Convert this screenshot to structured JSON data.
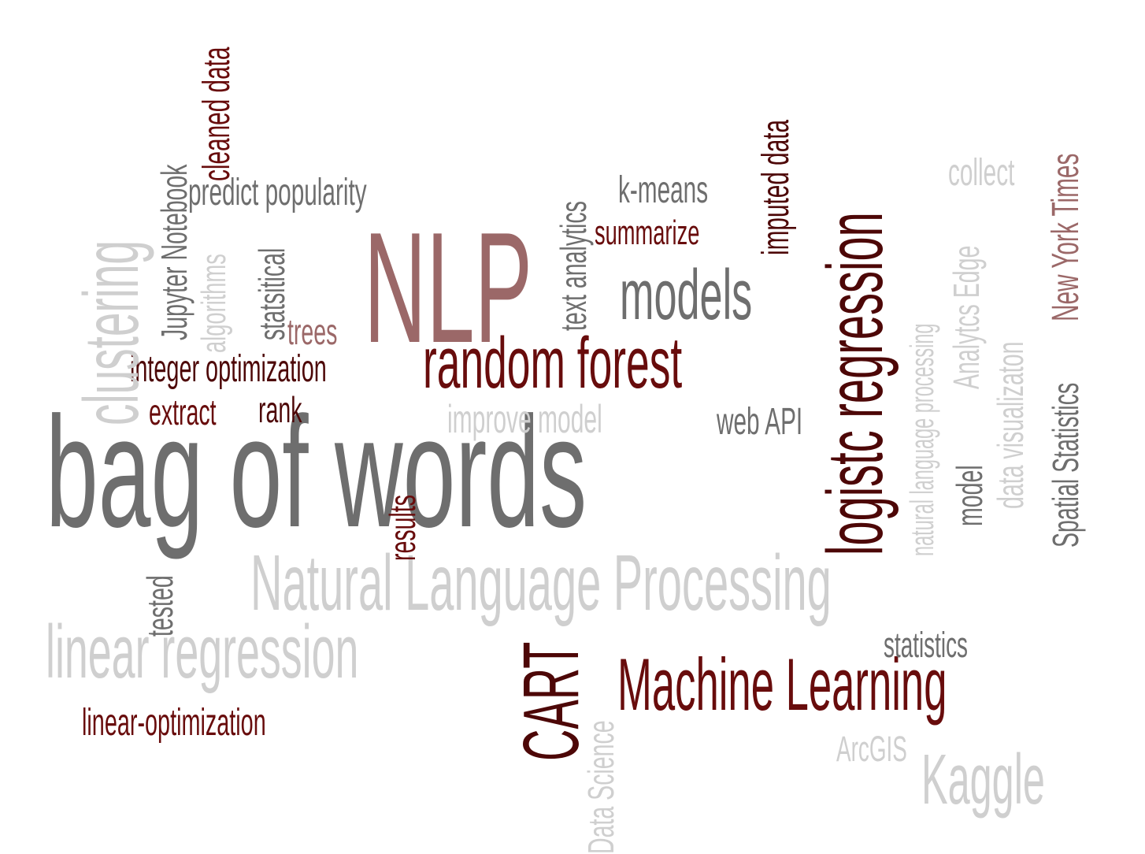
{
  "word_cloud": {
    "words": {
      "bag_of_words": "bag of words",
      "nlp": "NLP",
      "random_forest": "random forest",
      "models": "models",
      "natural_language_processing": "Natural Language Processing",
      "linear_regression": "linear regression",
      "machine_learning": "Machine Learning",
      "kaggle": "Kaggle",
      "statistics": "statistics",
      "arcgis": "ArcGIS",
      "linear_optimization": "linear-optimization",
      "integer_optimization": "integer optimization",
      "extract": "extract",
      "rank": "rank",
      "trees": "trees",
      "predict_popularity": "predict popularity",
      "k_means": "k-means",
      "summarize": "summarize",
      "improve_model": "improve model",
      "web_api": "web API",
      "collect": "collect",
      "clustering": "clustering",
      "jupyter_notebook": "Jupyter Notebook",
      "algorithms": "algorithms",
      "cleaned_data": "cleaned data",
      "statsitical": "statsitical",
      "text_analytics": "text analytics",
      "imputed_data": "imputed data",
      "logistc_regression": "logistc regression",
      "natural_language_processing_small": "natural language processing",
      "analytcs_edge": "Analytcs Edge",
      "model": "model",
      "data_visualizaton": "data visualizaton",
      "spatial_statistics": "Spatial Statistics",
      "new_york_times": "New York Times",
      "results": "results",
      "tested": "tested",
      "cart": "CART",
      "data_science": "Data Science"
    },
    "colors": {
      "dark_red": "#680c0c",
      "darkest_red": "#4d0707",
      "rose": "#9b6868",
      "dark_gray": "#6e6e6e",
      "light_gray": "#cfcfcf",
      "mid_gray": "#a8a8a8",
      "background": "#ffffff"
    }
  }
}
